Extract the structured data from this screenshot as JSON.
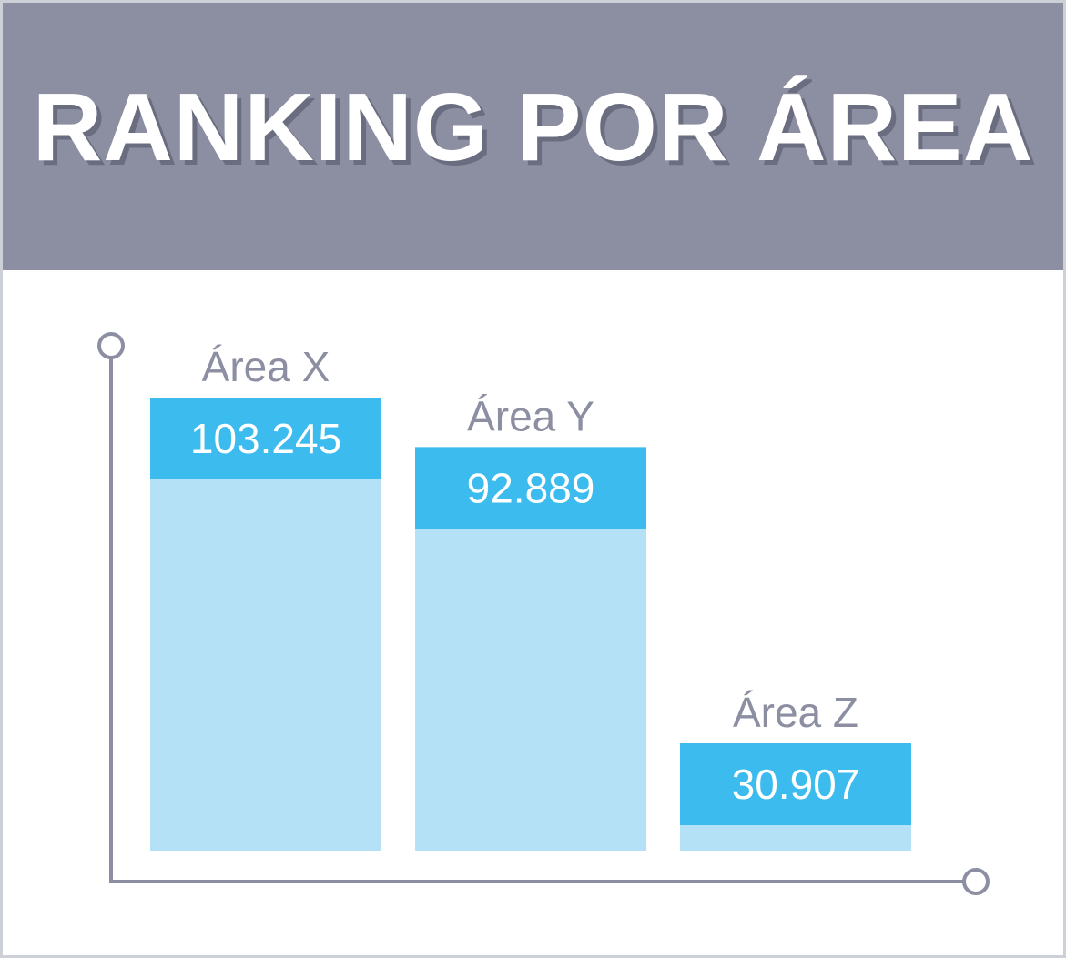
{
  "chart_data": {
    "type": "bar",
    "title": "RANKING POR ÁREA",
    "categories": [
      "Área X",
      "Área Y",
      "Área Z"
    ],
    "values": [
      103245,
      92889,
      30907
    ],
    "value_labels": [
      "103.245",
      "92.889",
      "30.907"
    ],
    "xlabel": "",
    "ylabel": "",
    "grid": false,
    "colors": {
      "header_bg": "#8c8ea2",
      "bar_top": "#3bbbee",
      "bar_body": "#b5e1f7",
      "axis": "#8c8ea2"
    }
  }
}
